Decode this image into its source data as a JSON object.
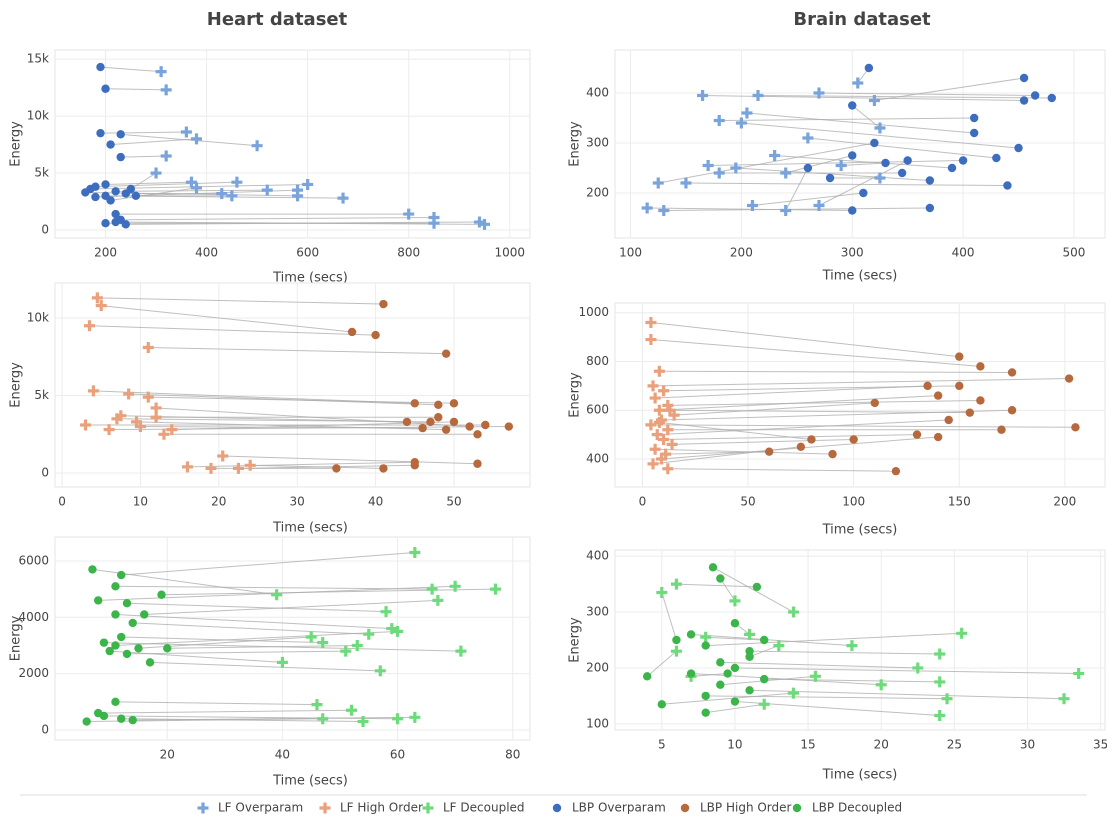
{
  "chart_data": [
    {
      "type": "scatter",
      "title": "Heart dataset",
      "x_label": "Time (secs)",
      "y_label": "Energy",
      "grid": true,
      "connectors": true,
      "xlim": [
        100,
        1040
      ],
      "ylim": [
        -700,
        15800
      ],
      "xticks": [
        200,
        400,
        600,
        800,
        1000
      ],
      "yticks": [
        0,
        {
          "value": 5000,
          "label": "5k"
        },
        {
          "value": 10000,
          "label": "10k"
        },
        {
          "value": 15000,
          "label": "15k"
        }
      ],
      "series": [
        {
          "name": "LF Overparam",
          "color": "#79a3db",
          "marker": "cross",
          "x": [
            310,
            320,
            360,
            500,
            380,
            320,
            580,
            600,
            460,
            670,
            520,
            430,
            370,
            300,
            580,
            800,
            850,
            950,
            850,
            940,
            450,
            380
          ],
          "values": [
            13900,
            12300,
            8600,
            7400,
            8000,
            6500,
            3000,
            4000,
            4200,
            2800,
            3500,
            3200,
            4200,
            5000,
            3500,
            1400,
            1100,
            500,
            600,
            700,
            3000,
            3700
          ]
        },
        {
          "name": "LBP Overparam",
          "color": "#3d6dbf",
          "marker": "circle",
          "x": [
            190,
            200,
            190,
            230,
            210,
            230,
            160,
            170,
            180,
            200,
            220,
            240,
            200,
            250,
            180,
            220,
            230,
            220,
            200,
            240,
            260,
            210
          ],
          "values": [
            14300,
            12400,
            8500,
            8400,
            7500,
            6400,
            3300,
            3600,
            3800,
            3000,
            3400,
            3200,
            4000,
            3600,
            2900,
            1400,
            900,
            700,
            600,
            500,
            3000,
            2600
          ]
        }
      ]
    },
    {
      "type": "scatter",
      "title": "Brain dataset",
      "x_label": "Time (secs)",
      "y_label": "Energy",
      "grid": true,
      "connectors": true,
      "xlim": [
        86,
        528
      ],
      "ylim": [
        110,
        486
      ],
      "xticks": [
        100,
        200,
        300,
        400,
        500
      ],
      "yticks": [
        200,
        300,
        400
      ],
      "series": [
        {
          "name": "LF Overparam",
          "color": "#79a3db",
          "marker": "cross",
          "x": [
            165,
            215,
            270,
            305,
            320,
            180,
            205,
            200,
            260,
            325,
            230,
            170,
            150,
            125,
            195,
            180,
            240,
            115,
            130,
            210,
            240,
            290,
            325,
            270
          ],
          "values": [
            395,
            395,
            400,
            420,
            385,
            345,
            360,
            340,
            310,
            330,
            275,
            255,
            220,
            220,
            250,
            240,
            240,
            170,
            165,
            175,
            165,
            255,
            230,
            175
          ]
        },
        {
          "name": "LBP Overparam",
          "color": "#3d6dbf",
          "marker": "circle",
          "x": [
            455,
            480,
            465,
            315,
            455,
            410,
            410,
            450,
            430,
            300,
            390,
            400,
            440,
            320,
            370,
            345,
            300,
            300,
            370,
            310,
            260,
            330,
            280,
            350
          ],
          "values": [
            385,
            390,
            395,
            450,
            430,
            350,
            320,
            290,
            270,
            375,
            250,
            265,
            215,
            300,
            225,
            240,
            275,
            165,
            170,
            200,
            250,
            260,
            230,
            265
          ]
        }
      ]
    },
    {
      "type": "scatter",
      "x_label": "Time (secs)",
      "y_label": "Energy",
      "grid": true,
      "connectors": true,
      "xlim": [
        -0.9,
        59.7
      ],
      "ylim": [
        -900,
        12260
      ],
      "xticks": [
        0,
        10,
        20,
        30,
        40,
        50
      ],
      "yticks": [
        0,
        {
          "value": 5000,
          "label": "5k"
        },
        {
          "value": 10000,
          "label": "10k"
        }
      ],
      "series": [
        {
          "name": "LF High Order",
          "color": "#e9a07b",
          "marker": "cross",
          "x": [
            4.5,
            5,
            3.5,
            11,
            4,
            8.5,
            11,
            12,
            7,
            3,
            9.5,
            13,
            6,
            10,
            14,
            7.5,
            16,
            19,
            20.5,
            24,
            22.5,
            12
          ],
          "values": [
            11300,
            10800,
            9500,
            8100,
            5300,
            5100,
            4900,
            4200,
            3500,
            3100,
            3300,
            2500,
            2800,
            3000,
            2800,
            3700,
            400,
            300,
            1100,
            500,
            300,
            3600
          ]
        },
        {
          "name": "LBP High Order",
          "color": "#b5693c",
          "marker": "circle",
          "x": [
            41,
            37,
            40,
            49,
            45,
            48,
            50,
            52,
            47,
            54,
            49,
            53,
            57,
            46,
            50,
            44,
            45,
            35,
            53,
            41,
            45,
            48
          ],
          "values": [
            10900,
            9100,
            8900,
            7700,
            4500,
            4400,
            4500,
            3000,
            3300,
            3100,
            2800,
            2500,
            3000,
            2900,
            3300,
            3300,
            700,
            300,
            600,
            300,
            500,
            3600
          ]
        }
      ]
    },
    {
      "type": "scatter",
      "x_label": "Time (secs)",
      "y_label": "Energy",
      "grid": true,
      "connectors": true,
      "xlim": [
        -13,
        219
      ],
      "ylim": [
        285,
        1040
      ],
      "xticks": [
        0,
        50,
        100,
        150,
        200
      ],
      "yticks": [
        400,
        600,
        800,
        1000
      ],
      "series": [
        {
          "name": "LF High Order",
          "color": "#e9a07b",
          "marker": "cross",
          "x": [
            4,
            4,
            8,
            5,
            10,
            6,
            12,
            8,
            15,
            9,
            4,
            12,
            7,
            10,
            14,
            6,
            11,
            9,
            5,
            12,
            8,
            13
          ],
          "values": [
            960,
            890,
            760,
            700,
            680,
            650,
            620,
            600,
            580,
            560,
            540,
            520,
            500,
            480,
            460,
            440,
            420,
            400,
            380,
            360,
            550,
            600
          ]
        },
        {
          "name": "LBP High Order",
          "color": "#b5693c",
          "marker": "circle",
          "x": [
            150,
            160,
            175,
            202,
            150,
            135,
            160,
            140,
            110,
            175,
            205,
            170,
            145,
            130,
            100,
            90,
            60,
            140,
            75,
            120,
            80,
            155
          ],
          "values": [
            820,
            780,
            755,
            730,
            700,
            700,
            640,
            660,
            630,
            600,
            530,
            520,
            560,
            500,
            480,
            420,
            430,
            490,
            450,
            350,
            480,
            590
          ]
        }
      ]
    },
    {
      "type": "scatter",
      "x_label": "Time (secs)",
      "y_label": "Energy",
      "grid": true,
      "connectors": true,
      "xlim": [
        0.5,
        83
      ],
      "ylim": [
        -355,
        6850
      ],
      "xticks": [
        20,
        40,
        60,
        80
      ],
      "yticks": [
        0,
        2000,
        4000,
        6000
      ],
      "series": [
        {
          "name": "LF Decoupled",
          "color": "#6ddb7b",
          "marker": "cross",
          "x": [
            39,
            63,
            66,
            70,
            77,
            58,
            59,
            67,
            55,
            71,
            47,
            40,
            51,
            57,
            45,
            60,
            53,
            54,
            46,
            60,
            47,
            63,
            52
          ],
          "values": [
            4800,
            6300,
            5000,
            5100,
            5000,
            4200,
            3600,
            4600,
            3400,
            2800,
            3100,
            2400,
            2800,
            2100,
            3300,
            3500,
            3000,
            300,
            900,
            400,
            400,
            450,
            700
          ]
        },
        {
          "name": "LBP Decoupled",
          "color": "#3bb44a",
          "marker": "circle",
          "x": [
            7,
            12,
            11,
            8,
            19,
            13,
            11,
            16,
            14,
            9,
            12,
            10,
            13,
            17,
            15,
            11,
            20,
            12,
            11,
            9,
            6,
            14,
            8
          ],
          "values": [
            5700,
            5500,
            5100,
            4600,
            4800,
            4500,
            4100,
            4100,
            3800,
            3100,
            3300,
            2800,
            2700,
            2400,
            2900,
            3000,
            2900,
            400,
            1000,
            500,
            300,
            350,
            600
          ]
        }
      ]
    },
    {
      "type": "scatter",
      "x_label": "Time (secs)",
      "y_label": "Energy",
      "grid": true,
      "connectors": true,
      "xlim": [
        1.8,
        35.3
      ],
      "ylim": [
        89,
        411
      ],
      "xticks": [
        5,
        10,
        15,
        20,
        25,
        30,
        35
      ],
      "yticks": [
        100,
        200,
        300,
        400
      ],
      "series": [
        {
          "name": "LF Decoupled",
          "color": "#6ddb7b",
          "marker": "cross",
          "x": [
            14,
            10,
            6,
            5,
            11,
            18,
            25.5,
            24,
            22.5,
            33.5,
            20,
            24,
            15.5,
            24.5,
            32.5,
            24,
            14,
            6,
            12,
            13,
            7,
            8
          ],
          "values": [
            300,
            320,
            350,
            335,
            260,
            240,
            262,
            225,
            200,
            190,
            170,
            175,
            185,
            145,
            145,
            115,
            155,
            230,
            135,
            240,
            185,
            255
          ]
        },
        {
          "name": "LBP Decoupled",
          "color": "#3bb44a",
          "marker": "circle",
          "x": [
            8.5,
            9,
            11.5,
            6,
            10,
            7,
            8,
            11,
            9,
            10,
            7,
            12,
            9,
            8,
            11,
            10,
            5,
            4,
            8,
            11,
            9.5,
            12
          ],
          "values": [
            380,
            360,
            345,
            250,
            280,
            260,
            240,
            230,
            210,
            200,
            190,
            180,
            170,
            150,
            160,
            140,
            135,
            185,
            120,
            220,
            190,
            250
          ]
        }
      ]
    }
  ]
}
